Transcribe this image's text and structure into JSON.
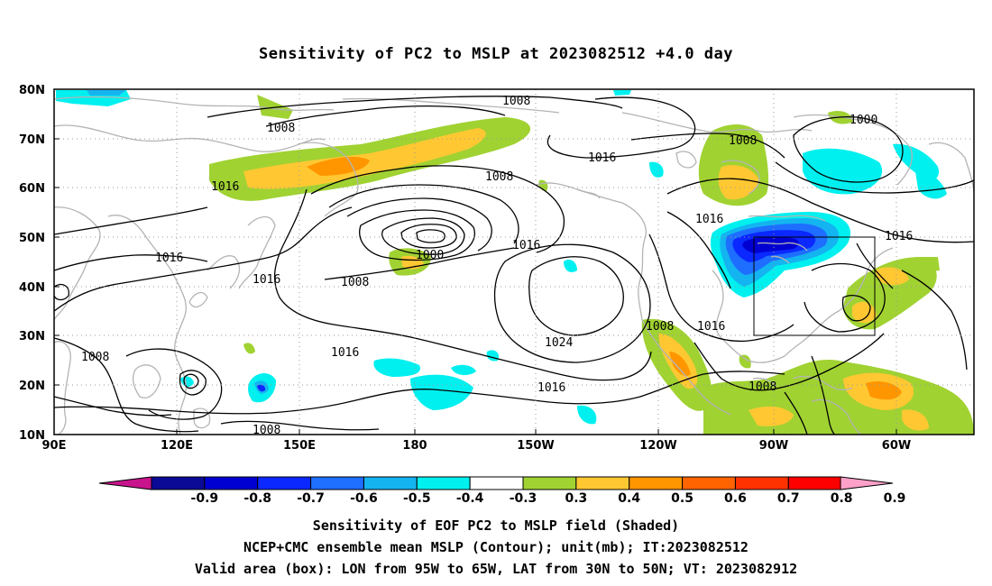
{
  "title": "Sensitivity of PC2 to MSLP at 2023082512 +4.0 day",
  "captions": [
    "Sensitivity of EOF PC2 to MSLP field (Shaded)",
    "NCEP+CMC ensemble mean MSLP (Contour); unit(mb); IT:2023082512",
    "Valid area (box): LON from 95W to 65W, LAT from 30N to 50N; VT: 2023082912"
  ],
  "axes": {
    "lat_ticks": [
      "10N",
      "20N",
      "30N",
      "40N",
      "50N",
      "60N",
      "70N",
      "80N"
    ],
    "lon_ticks": [
      "90E",
      "120E",
      "150E",
      "180",
      "150W",
      "120W",
      "90W",
      "60W"
    ]
  },
  "colorbar": {
    "labels": [
      "-0.9",
      "-0.8",
      "-0.7",
      "-0.6",
      "-0.5",
      "-0.4",
      "-0.3",
      "0.3",
      "0.4",
      "0.5",
      "0.6",
      "0.7",
      "0.8",
      "0.9"
    ],
    "colors": [
      "#c8148c",
      "#0a0a96",
      "#0000d2",
      "#0a28ff",
      "#1e6eff",
      "#14b4f0",
      "#00f0f0",
      "#ffffff",
      "#a0d232",
      "#ffc832",
      "#ff9600",
      "#ff6400",
      "#ff3200",
      "#ff0000",
      "#ffa0c8"
    ]
  },
  "contour_labels": [
    "1008",
    "1008",
    "1016",
    "1000",
    "1008",
    "1016",
    "1016",
    "1008",
    "1000",
    "1016",
    "1008",
    "1024",
    "1016",
    "1016",
    "1008",
    "1016",
    "1016",
    "1008",
    "1008",
    "1008",
    "1016"
  ],
  "colors": {
    "coast": "#b4b4b4",
    "contour": "#000000",
    "grid": "#999999"
  }
}
